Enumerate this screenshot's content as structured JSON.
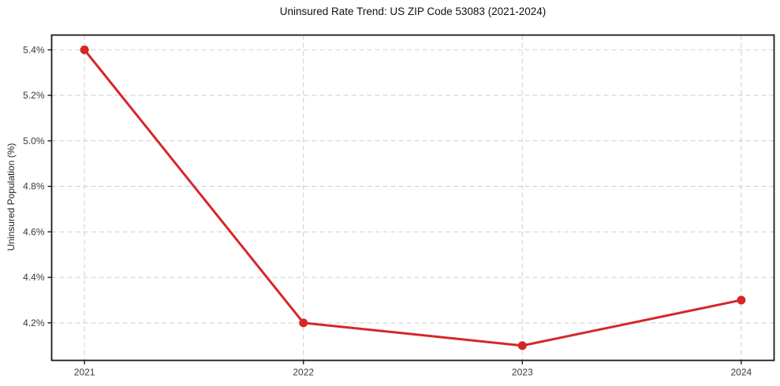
{
  "chart_data": {
    "type": "line",
    "title": "Uninsured Rate Trend: US ZIP Code 53083 (2021-2024)",
    "xlabel": "",
    "ylabel": "Uninsured Population (%)",
    "x": [
      2021,
      2022,
      2023,
      2024
    ],
    "values": [
      5.4,
      4.2,
      4.1,
      4.3
    ],
    "xtick_labels": [
      "2021",
      "2022",
      "2023",
      "2024"
    ],
    "ytick_values": [
      4.2,
      4.4,
      4.6,
      4.8,
      5.0,
      5.2,
      5.4
    ],
    "ytick_labels": [
      "4.2%",
      "4.4%",
      "4.6%",
      "4.8%",
      "5.0%",
      "5.2%",
      "5.4%"
    ],
    "xlim": [
      2020.85,
      2024.15
    ],
    "ylim": [
      4.035,
      5.465
    ],
    "grid": true,
    "grid_style": "dashed",
    "legend": "none",
    "line_color": "#d62728",
    "marker_color": "#d62728",
    "grid_color": "#cdcdcd",
    "spine_color": "#1a1a1a",
    "tick_label_color": "#3a3a3a",
    "background": "#ffffff"
  }
}
